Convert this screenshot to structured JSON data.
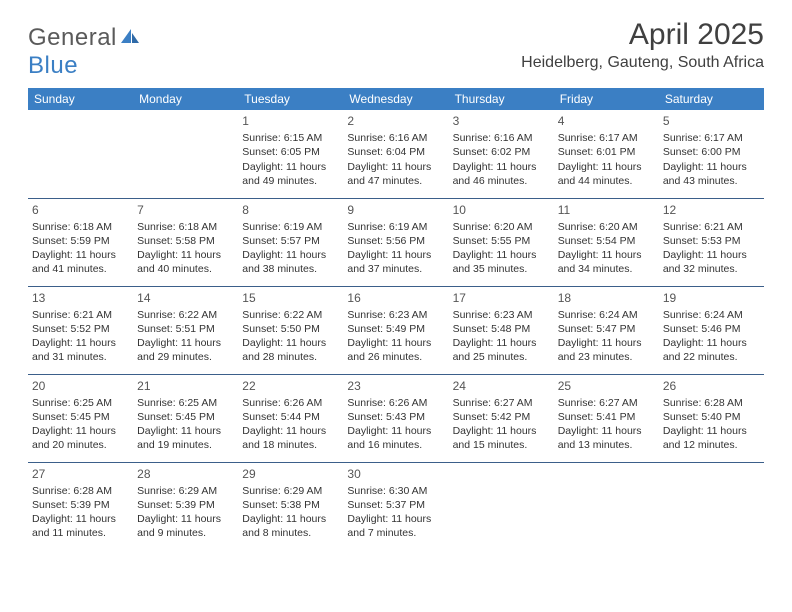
{
  "logo": {
    "word1": "General",
    "word2": "Blue"
  },
  "title": "April 2025",
  "location": "Heidelberg, Gauteng, South Africa",
  "colors": {
    "header_bg": "#3b7fc4",
    "header_text": "#ffffff",
    "row_border": "#3b5f8a",
    "title_text": "#404040",
    "body_text": "#333333",
    "logo_gray": "#5a5a5a",
    "logo_blue": "#3b7fc4",
    "page_bg": "#ffffff"
  },
  "typography": {
    "title_fontsize": 30,
    "location_fontsize": 16,
    "header_fontsize": 12,
    "daynum_fontsize": 12,
    "cell_fontsize": 10.5
  },
  "day_headers": [
    "Sunday",
    "Monday",
    "Tuesday",
    "Wednesday",
    "Thursday",
    "Friday",
    "Saturday"
  ],
  "weeks": [
    [
      null,
      null,
      {
        "n": "1",
        "sr": "Sunrise: 6:15 AM",
        "ss": "Sunset: 6:05 PM",
        "d1": "Daylight: 11 hours",
        "d2": "and 49 minutes."
      },
      {
        "n": "2",
        "sr": "Sunrise: 6:16 AM",
        "ss": "Sunset: 6:04 PM",
        "d1": "Daylight: 11 hours",
        "d2": "and 47 minutes."
      },
      {
        "n": "3",
        "sr": "Sunrise: 6:16 AM",
        "ss": "Sunset: 6:02 PM",
        "d1": "Daylight: 11 hours",
        "d2": "and 46 minutes."
      },
      {
        "n": "4",
        "sr": "Sunrise: 6:17 AM",
        "ss": "Sunset: 6:01 PM",
        "d1": "Daylight: 11 hours",
        "d2": "and 44 minutes."
      },
      {
        "n": "5",
        "sr": "Sunrise: 6:17 AM",
        "ss": "Sunset: 6:00 PM",
        "d1": "Daylight: 11 hours",
        "d2": "and 43 minutes."
      }
    ],
    [
      {
        "n": "6",
        "sr": "Sunrise: 6:18 AM",
        "ss": "Sunset: 5:59 PM",
        "d1": "Daylight: 11 hours",
        "d2": "and 41 minutes."
      },
      {
        "n": "7",
        "sr": "Sunrise: 6:18 AM",
        "ss": "Sunset: 5:58 PM",
        "d1": "Daylight: 11 hours",
        "d2": "and 40 minutes."
      },
      {
        "n": "8",
        "sr": "Sunrise: 6:19 AM",
        "ss": "Sunset: 5:57 PM",
        "d1": "Daylight: 11 hours",
        "d2": "and 38 minutes."
      },
      {
        "n": "9",
        "sr": "Sunrise: 6:19 AM",
        "ss": "Sunset: 5:56 PM",
        "d1": "Daylight: 11 hours",
        "d2": "and 37 minutes."
      },
      {
        "n": "10",
        "sr": "Sunrise: 6:20 AM",
        "ss": "Sunset: 5:55 PM",
        "d1": "Daylight: 11 hours",
        "d2": "and 35 minutes."
      },
      {
        "n": "11",
        "sr": "Sunrise: 6:20 AM",
        "ss": "Sunset: 5:54 PM",
        "d1": "Daylight: 11 hours",
        "d2": "and 34 minutes."
      },
      {
        "n": "12",
        "sr": "Sunrise: 6:21 AM",
        "ss": "Sunset: 5:53 PM",
        "d1": "Daylight: 11 hours",
        "d2": "and 32 minutes."
      }
    ],
    [
      {
        "n": "13",
        "sr": "Sunrise: 6:21 AM",
        "ss": "Sunset: 5:52 PM",
        "d1": "Daylight: 11 hours",
        "d2": "and 31 minutes."
      },
      {
        "n": "14",
        "sr": "Sunrise: 6:22 AM",
        "ss": "Sunset: 5:51 PM",
        "d1": "Daylight: 11 hours",
        "d2": "and 29 minutes."
      },
      {
        "n": "15",
        "sr": "Sunrise: 6:22 AM",
        "ss": "Sunset: 5:50 PM",
        "d1": "Daylight: 11 hours",
        "d2": "and 28 minutes."
      },
      {
        "n": "16",
        "sr": "Sunrise: 6:23 AM",
        "ss": "Sunset: 5:49 PM",
        "d1": "Daylight: 11 hours",
        "d2": "and 26 minutes."
      },
      {
        "n": "17",
        "sr": "Sunrise: 6:23 AM",
        "ss": "Sunset: 5:48 PM",
        "d1": "Daylight: 11 hours",
        "d2": "and 25 minutes."
      },
      {
        "n": "18",
        "sr": "Sunrise: 6:24 AM",
        "ss": "Sunset: 5:47 PM",
        "d1": "Daylight: 11 hours",
        "d2": "and 23 minutes."
      },
      {
        "n": "19",
        "sr": "Sunrise: 6:24 AM",
        "ss": "Sunset: 5:46 PM",
        "d1": "Daylight: 11 hours",
        "d2": "and 22 minutes."
      }
    ],
    [
      {
        "n": "20",
        "sr": "Sunrise: 6:25 AM",
        "ss": "Sunset: 5:45 PM",
        "d1": "Daylight: 11 hours",
        "d2": "and 20 minutes."
      },
      {
        "n": "21",
        "sr": "Sunrise: 6:25 AM",
        "ss": "Sunset: 5:45 PM",
        "d1": "Daylight: 11 hours",
        "d2": "and 19 minutes."
      },
      {
        "n": "22",
        "sr": "Sunrise: 6:26 AM",
        "ss": "Sunset: 5:44 PM",
        "d1": "Daylight: 11 hours",
        "d2": "and 18 minutes."
      },
      {
        "n": "23",
        "sr": "Sunrise: 6:26 AM",
        "ss": "Sunset: 5:43 PM",
        "d1": "Daylight: 11 hours",
        "d2": "and 16 minutes."
      },
      {
        "n": "24",
        "sr": "Sunrise: 6:27 AM",
        "ss": "Sunset: 5:42 PM",
        "d1": "Daylight: 11 hours",
        "d2": "and 15 minutes."
      },
      {
        "n": "25",
        "sr": "Sunrise: 6:27 AM",
        "ss": "Sunset: 5:41 PM",
        "d1": "Daylight: 11 hours",
        "d2": "and 13 minutes."
      },
      {
        "n": "26",
        "sr": "Sunrise: 6:28 AM",
        "ss": "Sunset: 5:40 PM",
        "d1": "Daylight: 11 hours",
        "d2": "and 12 minutes."
      }
    ],
    [
      {
        "n": "27",
        "sr": "Sunrise: 6:28 AM",
        "ss": "Sunset: 5:39 PM",
        "d1": "Daylight: 11 hours",
        "d2": "and 11 minutes."
      },
      {
        "n": "28",
        "sr": "Sunrise: 6:29 AM",
        "ss": "Sunset: 5:39 PM",
        "d1": "Daylight: 11 hours",
        "d2": "and 9 minutes."
      },
      {
        "n": "29",
        "sr": "Sunrise: 6:29 AM",
        "ss": "Sunset: 5:38 PM",
        "d1": "Daylight: 11 hours",
        "d2": "and 8 minutes."
      },
      {
        "n": "30",
        "sr": "Sunrise: 6:30 AM",
        "ss": "Sunset: 5:37 PM",
        "d1": "Daylight: 11 hours",
        "d2": "and 7 minutes."
      },
      null,
      null,
      null
    ]
  ]
}
